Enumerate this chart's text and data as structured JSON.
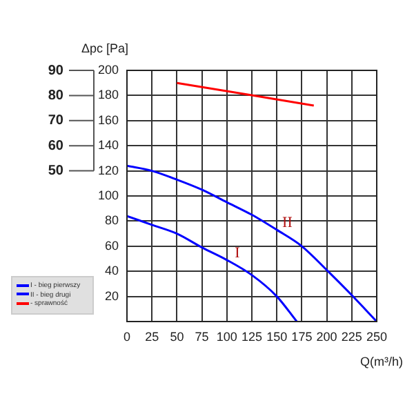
{
  "chart_data": {
    "type": "line",
    "xlabel": "Q(m³/h)",
    "ylabel": "Δpc [Pa]",
    "xlim": [
      0,
      250
    ],
    "xticks": [
      0,
      25,
      50,
      75,
      100,
      125,
      150,
      175,
      200,
      225,
      250
    ],
    "ylim": [
      0,
      200
    ],
    "yticks": [
      20,
      40,
      60,
      80,
      100,
      120,
      140,
      160,
      180,
      200
    ],
    "y2lim": [
      -10,
      90
    ],
    "y2ticks": [
      50,
      60,
      70,
      80,
      90
    ],
    "grid": true,
    "legend": "left",
    "marker": "none",
    "line_style": "solid",
    "series": [
      {
        "name": "I - bieg pierwszy",
        "color": "#0000ff",
        "x": [
          0,
          25,
          50,
          75,
          100,
          125,
          150,
          170
        ],
        "values": [
          84,
          77,
          70,
          59,
          49,
          37,
          20,
          0
        ]
      },
      {
        "name": "II - bieg drugi",
        "color": "#0000ff",
        "x": [
          0,
          25,
          50,
          75,
          100,
          125,
          150,
          175,
          200,
          225,
          250
        ],
        "values": [
          124,
          120,
          113,
          105,
          95,
          85,
          73,
          60,
          41,
          21,
          0
        ]
      },
      {
        "name": "- sprawność",
        "color": "#ff0000",
        "axis": "y2",
        "x": [
          50,
          187
        ],
        "values": [
          85,
          76
        ]
      }
    ],
    "annotations": [
      {
        "text": "I",
        "x": 116,
        "y": 41
      },
      {
        "text": "II",
        "x": 166,
        "y": 65
      }
    ]
  }
}
